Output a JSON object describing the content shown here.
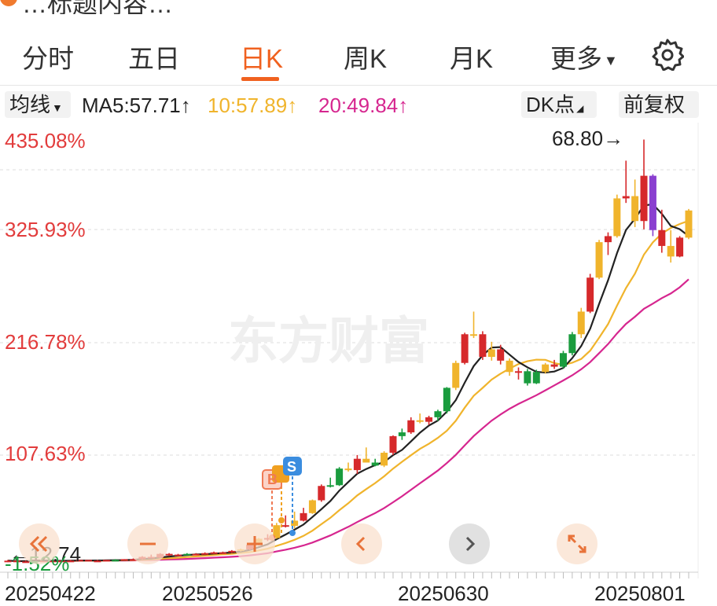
{
  "header": {
    "title_partial": "…标题内容…"
  },
  "tabs": [
    {
      "label": "分时"
    },
    {
      "label": "五日"
    },
    {
      "label": "日K",
      "active": true
    },
    {
      "label": "周K"
    },
    {
      "label": "月K"
    },
    {
      "label": "更多"
    }
  ],
  "ma_bar": {
    "indicator": "均线",
    "ma5": "MA5:57.71↑",
    "ma10": "10:57.89↑",
    "ma20": "20:49.84↑",
    "dk": "DK点",
    "adjust": "前复权"
  },
  "colors": {
    "accent": "#f0611f",
    "up": "#d6292b",
    "down": "#1a9c3e",
    "ma5": "#222222",
    "ma10": "#f0b42c",
    "ma20": "#d6268f"
  },
  "watermark": "东方财富",
  "chart_data": {
    "type": "candlestick",
    "y_labels": [
      "435.08%",
      "325.93%",
      "216.78%",
      "107.63%",
      "-1.52%"
    ],
    "x_labels": [
      "20250422",
      "20250526",
      "20250630",
      "20250801"
    ],
    "max_marker": "68.80→",
    "min_marker": "←12.74",
    "candles": [
      [
        13.0,
        13.1,
        12.8,
        13.0
      ],
      [
        13.0,
        13.0,
        12.8,
        12.9
      ],
      [
        12.9,
        13.0,
        12.74,
        12.9
      ],
      [
        12.9,
        13.1,
        12.9,
        13.0
      ],
      [
        13.0,
        13.1,
        12.9,
        13.0
      ],
      [
        13.0,
        13.1,
        12.9,
        13.0
      ],
      [
        13.0,
        13.0,
        12.9,
        13.0
      ],
      [
        13.0,
        13.1,
        12.9,
        13.0
      ],
      [
        13.0,
        13.1,
        12.9,
        13.1
      ],
      [
        13.1,
        13.1,
        13.0,
        13.0
      ],
      [
        13.0,
        13.1,
        12.9,
        13.0
      ],
      [
        13.0,
        13.1,
        13.0,
        13.1
      ],
      [
        13.1,
        13.2,
        13.0,
        13.1
      ],
      [
        13.1,
        13.2,
        13.0,
        13.2
      ],
      [
        13.2,
        13.3,
        13.1,
        13.2
      ],
      [
        13.2,
        13.6,
        13.1,
        13.5
      ],
      [
        13.5,
        13.8,
        13.3,
        13.4
      ],
      [
        13.4,
        14.0,
        13.3,
        13.9
      ],
      [
        13.9,
        14.0,
        13.6,
        13.7
      ],
      [
        13.7,
        13.9,
        13.6,
        13.8
      ],
      [
        13.8,
        14.0,
        13.7,
        13.9
      ],
      [
        13.9,
        14.0,
        13.8,
        13.9
      ],
      [
        13.9,
        14.1,
        13.8,
        14.0
      ],
      [
        14.0,
        14.2,
        13.9,
        14.1
      ],
      [
        14.1,
        14.2,
        14.0,
        14.1
      ],
      [
        14.1,
        14.4,
        14.0,
        14.3
      ],
      [
        14.3,
        14.6,
        14.2,
        14.5
      ],
      [
        14.5,
        15.2,
        14.4,
        15.1
      ],
      [
        15.1,
        16.0,
        15.0,
        15.9
      ],
      [
        15.9,
        16.5,
        15.6,
        16.0
      ],
      [
        16.0,
        18.0,
        15.9,
        17.7
      ],
      [
        17.7,
        19.0,
        17.4,
        17.6
      ],
      [
        17.6,
        19.5,
        17.3,
        18.3
      ],
      [
        18.3,
        20.0,
        18.2,
        19.3
      ],
      [
        19.3,
        21.1,
        19.2,
        21.0
      ],
      [
        21.0,
        23.1,
        20.8,
        22.9
      ],
      [
        22.9,
        24.0,
        22.7,
        23.0
      ],
      [
        23.0,
        25.4,
        22.9,
        25.2
      ],
      [
        25.2,
        26.0,
        24.8,
        25.0
      ],
      [
        25.0,
        27.0,
        24.5,
        26.5
      ],
      [
        26.5,
        28.0,
        26.0,
        26.0
      ],
      [
        26.0,
        26.5,
        25.5,
        25.6
      ],
      [
        25.6,
        27.5,
        25.4,
        27.3
      ],
      [
        27.3,
        29.6,
        27.0,
        29.5
      ],
      [
        29.5,
        30.5,
        29.0,
        30.0
      ],
      [
        30.0,
        32.0,
        29.8,
        31.6
      ],
      [
        31.6,
        32.5,
        31.2,
        31.4
      ],
      [
        31.4,
        32.2,
        31.0,
        32.0
      ],
      [
        32.0,
        33.0,
        31.5,
        32.8
      ],
      [
        32.8,
        36.0,
        32.5,
        35.9
      ],
      [
        35.9,
        39.5,
        35.6,
        39.2
      ],
      [
        39.2,
        43.2,
        39.0,
        43.0
      ],
      [
        43.0,
        46.0,
        42.5,
        43.0
      ],
      [
        43.0,
        43.4,
        39.6,
        40.0
      ],
      [
        40.0,
        42.0,
        39.5,
        41.0
      ],
      [
        41.0,
        41.6,
        39.0,
        39.5
      ],
      [
        39.5,
        39.8,
        37.5,
        38.0
      ],
      [
        38.0,
        38.6,
        37.0,
        38.1
      ],
      [
        38.1,
        38.4,
        36.2,
        36.5
      ],
      [
        36.5,
        38.3,
        36.4,
        38.0
      ],
      [
        38.0,
        39.2,
        37.8,
        39.0
      ],
      [
        39.0,
        39.6,
        38.4,
        38.7
      ],
      [
        38.7,
        40.8,
        38.5,
        40.5
      ],
      [
        40.5,
        43.3,
        40.2,
        43.0
      ],
      [
        43.0,
        46.5,
        42.5,
        46.0
      ],
      [
        46.0,
        51.0,
        45.8,
        50.5
      ],
      [
        50.5,
        55.5,
        50.3,
        55.2
      ],
      [
        55.2,
        56.5,
        53.5,
        56.0
      ],
      [
        56.0,
        61.5,
        55.8,
        61.0
      ],
      [
        61.0,
        66.0,
        60.4,
        61.3
      ],
      [
        61.3,
        63.5,
        57.2,
        58.0
      ],
      [
        58.0,
        68.8,
        56.9,
        64.0
      ],
      [
        64.0,
        64.2,
        56.0,
        56.8
      ],
      [
        56.8,
        59.5,
        53.8,
        54.7
      ],
      [
        54.7,
        56.8,
        52.5,
        53.3
      ],
      [
        53.3,
        56.0,
        53.2,
        55.8
      ],
      [
        55.8,
        59.6,
        55.6,
        59.4
      ]
    ],
    "down_indices": [
      3,
      12,
      20,
      36,
      37,
      41,
      44,
      48,
      49,
      58,
      59,
      62,
      63
    ],
    "purple_indices": [
      72
    ]
  }
}
